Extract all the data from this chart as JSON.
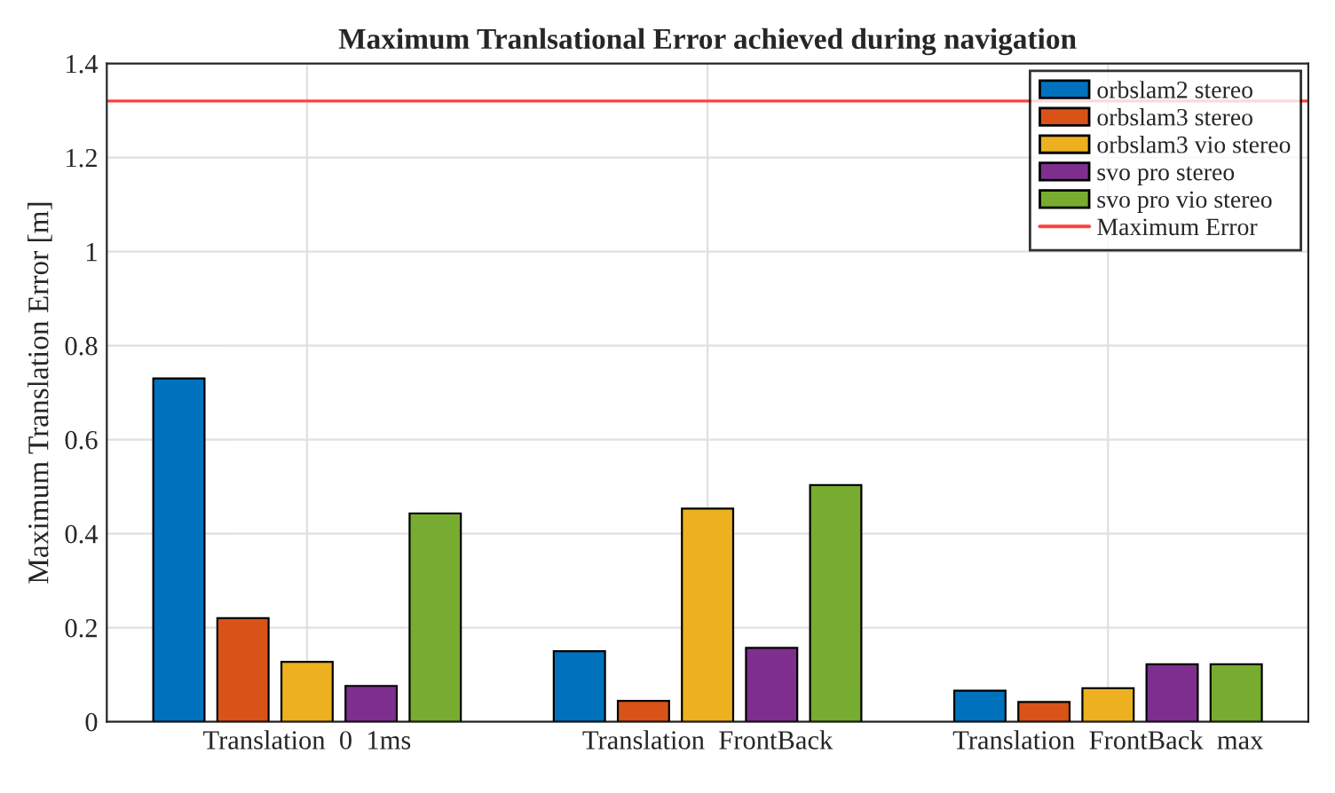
{
  "chart_data": {
    "type": "bar",
    "title": "Maximum Tranlsational Error achieved during navigation",
    "ylabel": "Maximum Translation Error [m]",
    "categories": [
      "Translation  0  1ms",
      "Translation  FrontBack",
      "Translation  FrontBack  max"
    ],
    "series": [
      {
        "name": "orbslam2 stereo",
        "color": "#0072bd",
        "values": [
          0.73,
          0.15,
          0.066
        ]
      },
      {
        "name": "orbslam3 stereo",
        "color": "#d95319",
        "values": [
          0.22,
          0.044,
          0.042
        ]
      },
      {
        "name": "orbslam3 vio stereo",
        "color": "#edb120",
        "values": [
          0.127,
          0.453,
          0.071
        ]
      },
      {
        "name": "svo pro stereo",
        "color": "#7e2f8e",
        "values": [
          0.076,
          0.157,
          0.122
        ]
      },
      {
        "name": "svo pro vio stereo",
        "color": "#77ac30",
        "values": [
          0.443,
          0.503,
          0.122
        ]
      }
    ],
    "ref_lines": [
      {
        "axis": "y",
        "value": 1.32,
        "label": "Maximum Error",
        "color": "#ff4040",
        "line_style": "solid"
      }
    ],
    "ylim": [
      0,
      1.4
    ],
    "yticks": [
      0,
      0.2,
      0.4,
      0.6,
      0.8,
      1,
      1.2,
      1.4
    ],
    "grid": true,
    "legend": "top right"
  }
}
